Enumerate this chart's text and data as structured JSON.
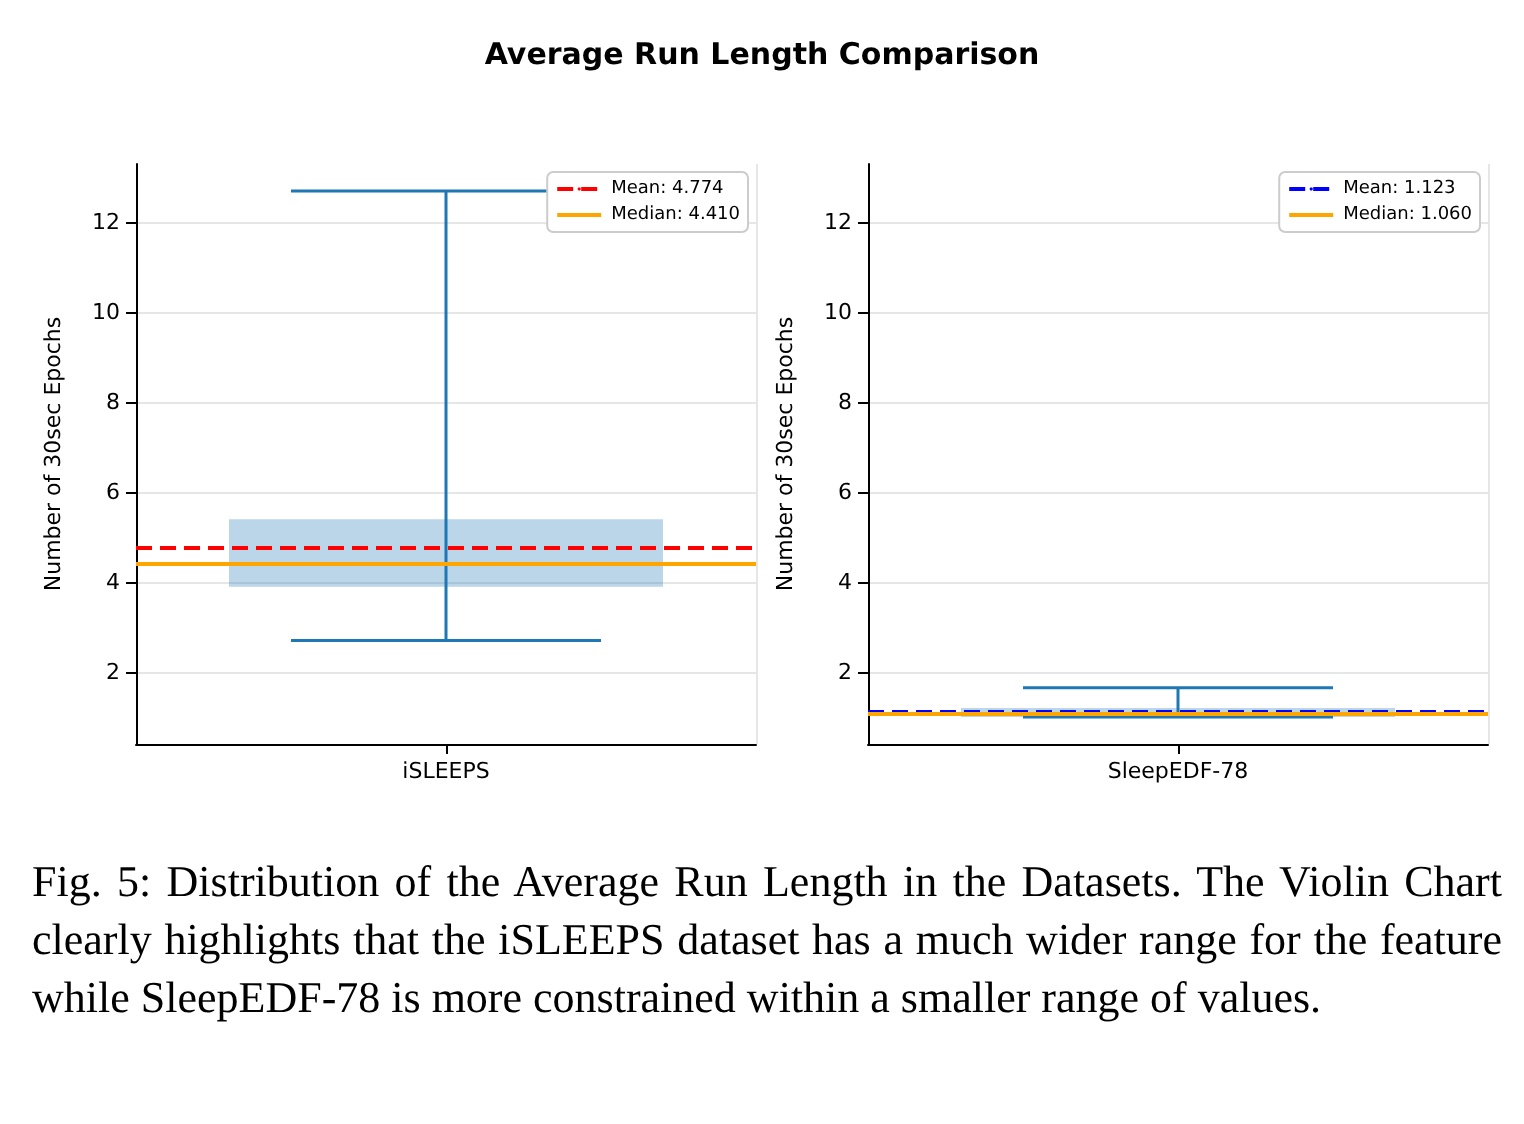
{
  "chart_data": [
    {
      "type": "box",
      "title": "Average Run Length Comparison",
      "categories": [
        "iSLEEPS"
      ],
      "color": "#1f77b4",
      "boxes": [
        {
          "low": 2.7,
          "q1": 3.9,
          "median": 4.41,
          "q3": 5.4,
          "high": 12.7
        }
      ],
      "ylabel": "Number of 30sec Epochs",
      "ylim": [
        0.4,
        13.3
      ],
      "yticks": [
        2,
        4,
        6,
        8,
        10,
        12
      ],
      "grid": true,
      "legend": "top right",
      "ref_lines": [
        {
          "axis": "y",
          "value": 4.774,
          "label": "Mean: 4.774",
          "color": "#ff0000",
          "line_style": "dashed"
        },
        {
          "axis": "y",
          "value": 4.41,
          "label": "Median: 4.410",
          "color": "#ffa500",
          "line_style": "solid"
        }
      ],
      "annotations": [
        "Fig. 5: Distribution of the Average Run Length in the Datasets. The Violin Chart clearly highlights that the iSLEEPS dataset has a much wider range for the feature while SleepEDF-78 is more constrained within a smaller range of values."
      ]
    },
    {
      "type": "box",
      "categories": [
        "SleepEDF-78"
      ],
      "color": "#1f77b4",
      "boxes": [
        {
          "low": 1.0,
          "q1": 1.0,
          "median": 1.06,
          "q3": 1.2,
          "high": 1.65
        }
      ],
      "ylabel": "Number of 30sec Epochs",
      "ylim": [
        0.4,
        13.3
      ],
      "yticks": [
        2,
        4,
        6,
        8,
        10,
        12
      ],
      "grid": true,
      "legend": "top right",
      "ref_lines": [
        {
          "axis": "y",
          "value": 1.123,
          "label": "Mean: 1.123",
          "color": "#0000ff",
          "line_style": "dashed"
        },
        {
          "axis": "y",
          "value": 1.06,
          "label": "Median: 1.060",
          "color": "#ffa500",
          "line_style": "solid"
        }
      ]
    }
  ]
}
